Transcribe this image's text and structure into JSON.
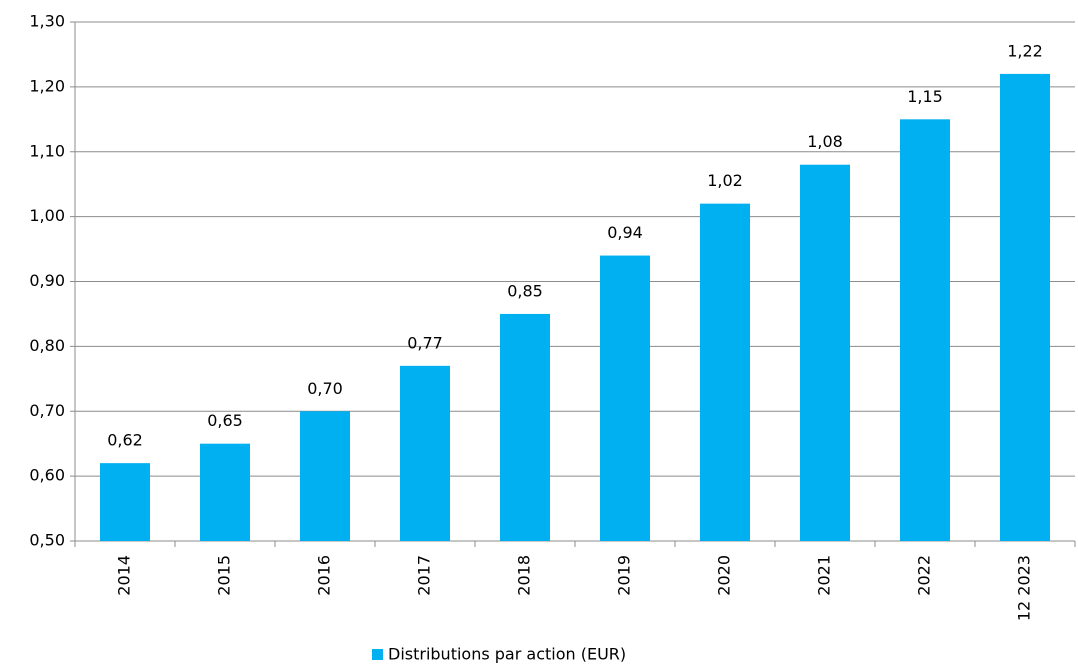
{
  "chart_data": {
    "type": "bar",
    "categories": [
      "2014",
      "2015",
      "2016",
      "2017",
      "2018",
      "2019",
      "2020",
      "2021",
      "2022",
      "12 2023"
    ],
    "series": [
      {
        "name": "Distributions par action (EUR)",
        "color": "#00b0f0",
        "values": [
          0.62,
          0.65,
          0.7,
          0.77,
          0.85,
          0.94,
          1.02,
          1.08,
          1.15,
          1.22
        ],
        "value_labels": [
          "0,62",
          "0,65",
          "0,70",
          "0,77",
          "0,85",
          "0,94",
          "1,02",
          "1,08",
          "1,15",
          "1,22"
        ]
      }
    ],
    "ylim": [
      0.5,
      1.3
    ],
    "yticks": [
      {
        "value": 0.5,
        "label": "0,50"
      },
      {
        "value": 0.6,
        "label": "0,60"
      },
      {
        "value": 0.7,
        "label": "0,70"
      },
      {
        "value": 0.8,
        "label": "0,80"
      },
      {
        "value": 0.9,
        "label": "0,90"
      },
      {
        "value": 1.0,
        "label": "1,00"
      },
      {
        "value": 1.1,
        "label": "1,10"
      },
      {
        "value": 1.2,
        "label": "1,20"
      },
      {
        "value": 1.3,
        "label": "1,30"
      }
    ],
    "grid": true,
    "legend": "bottom"
  }
}
